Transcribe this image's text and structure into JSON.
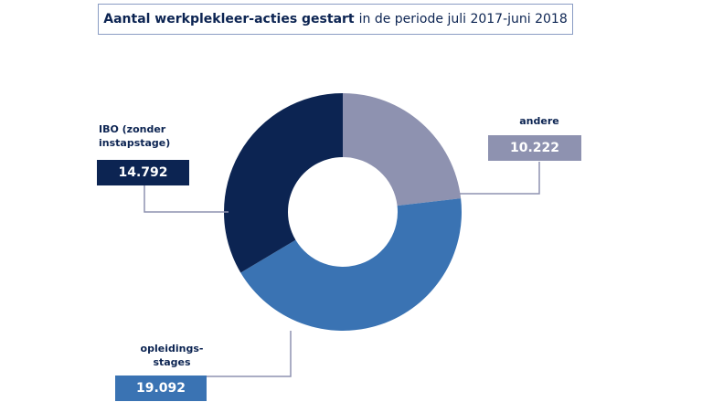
{
  "chart_data": {
    "type": "donut",
    "title": "Aantal werkplekleer-acties gestart",
    "subtitle": "in de periode juli 2017-juni 2018",
    "categories": [
      "andere",
      "opleidings-stages",
      "IBO (zonder instapstage)"
    ],
    "values": [
      10222,
      19092,
      14792
    ],
    "value_labels": [
      "10.222",
      "19.092",
      "14.792"
    ],
    "colors": [
      "#8e92b0",
      "#3a73b3",
      "#0c2452"
    ]
  }
}
